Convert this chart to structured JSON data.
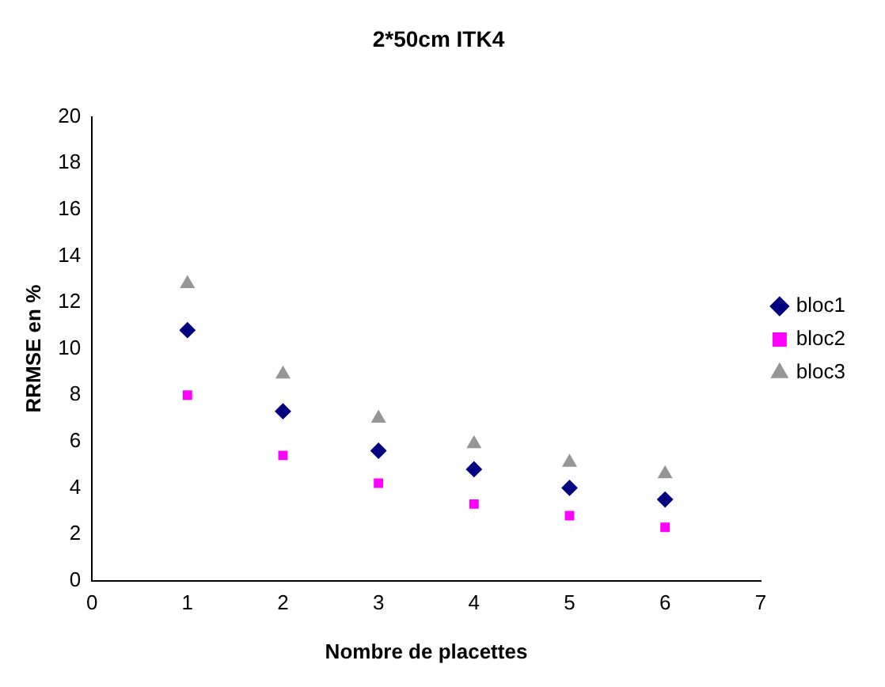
{
  "chart_data": {
    "type": "scatter",
    "title": "2*50cm ITK4",
    "xlabel": "Nombre de placettes",
    "ylabel": "RRMSE en %",
    "x": [
      1,
      2,
      3,
      4,
      5,
      6
    ],
    "series": [
      {
        "name": "bloc1",
        "color": "#000080",
        "marker": "diamond",
        "values": [
          10.8,
          7.3,
          5.6,
          4.8,
          4.0,
          3.5
        ]
      },
      {
        "name": "bloc2",
        "color": "#ff00ff",
        "marker": "square",
        "values": [
          8.0,
          5.4,
          4.2,
          3.3,
          2.8,
          2.3
        ]
      },
      {
        "name": "bloc3",
        "color": "#969696",
        "marker": "triangle",
        "values": [
          12.8,
          8.9,
          7.0,
          5.9,
          5.1,
          4.6
        ]
      }
    ],
    "xlim": [
      0,
      7
    ],
    "xticks": [
      0,
      1,
      2,
      3,
      4,
      5,
      6,
      7
    ],
    "ylim": [
      0,
      20
    ],
    "yticks": [
      0,
      2,
      4,
      6,
      8,
      10,
      12,
      14,
      16,
      18,
      20
    ],
    "grid": false,
    "legend": "right"
  }
}
